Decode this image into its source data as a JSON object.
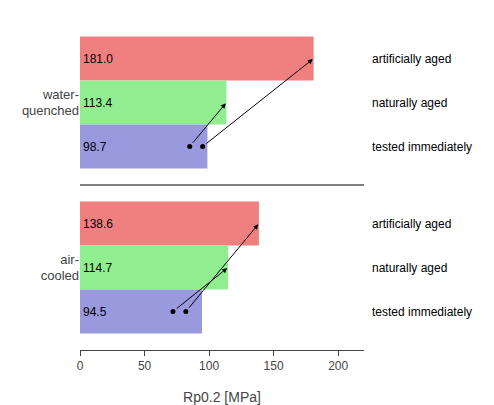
{
  "chart_data": {
    "type": "bar",
    "orientation": "horizontal",
    "categories": [
      "water-\nquenched",
      "air-\ncooled"
    ],
    "series": [
      {
        "name": "artificially aged",
        "color": "#F08080",
        "values": [
          181.0,
          138.6
        ],
        "value_labels": [
          "181.0",
          "138.6"
        ]
      },
      {
        "name": "naturally aged",
        "color": "#90EE90",
        "values": [
          113.4,
          114.7
        ]
      },
      {
        "name": "tested immediately",
        "color": "#9999DD",
        "values": [
          98.7,
          94.5
        ]
      }
    ],
    "xlabel": "Rp0.2 [MPa]",
    "xlim": [
      0,
      220
    ],
    "xticks": [
      0,
      50,
      100,
      150,
      200
    ],
    "grid": false,
    "data_labels": true,
    "dots": [
      {
        "category": "water-\nquenched",
        "series": "tested immediately",
        "x": [
          85,
          95
        ],
        "arrow_to": [
          "naturally aged",
          "artificially aged"
        ]
      },
      {
        "category": "air-\ncooled",
        "series": "tested immediately",
        "x": [
          72,
          82
        ],
        "arrow_to": [
          "naturally aged",
          "artificially aged"
        ]
      }
    ]
  }
}
